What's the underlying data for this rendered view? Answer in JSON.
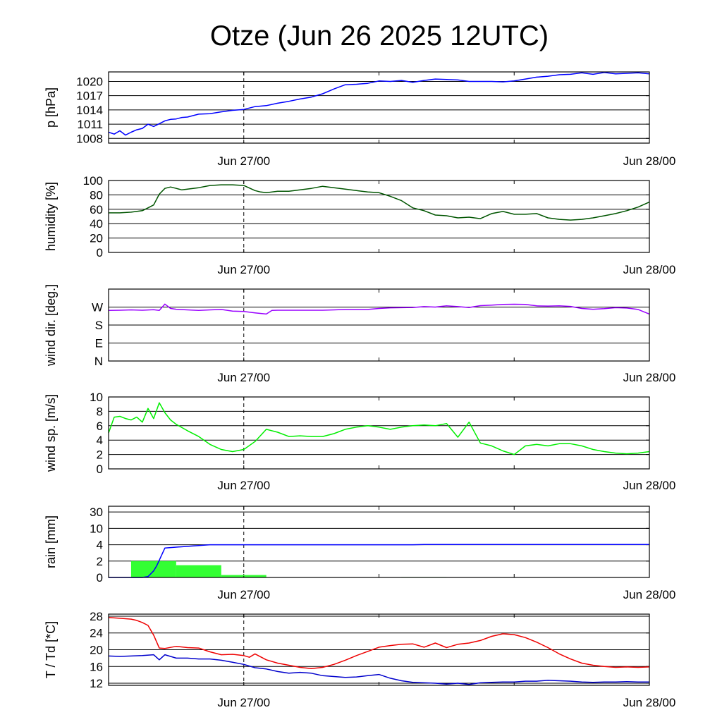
{
  "title": "Otze (Jun 26 2025 12UTC)",
  "chart_data": [
    {
      "type": "line",
      "ylabel": "p [hPa]",
      "yticks": [
        1008,
        1011,
        1014,
        1017,
        1020
      ],
      "ylim": [
        1007,
        1022
      ],
      "xticklabels": [
        "Jun 27/00",
        "Jun 28/00"
      ],
      "series": [
        {
          "color": "#0000ff",
          "x": [
            0,
            0.5,
            1,
            1.5,
            2,
            2.5,
            3,
            3.5,
            4,
            4.5,
            5,
            5.5,
            6,
            6.5,
            7,
            8,
            9,
            10,
            11,
            12,
            13,
            14,
            15,
            16,
            17,
            18,
            19,
            20,
            21,
            22,
            23,
            24,
            25,
            26,
            27,
            28,
            29,
            30,
            31,
            32,
            33,
            34,
            35,
            36,
            37,
            38,
            39,
            40,
            41,
            42,
            43,
            44,
            45,
            46,
            47,
            48
          ],
          "values": [
            1009.3,
            1008.9,
            1009.6,
            1008.7,
            1009.3,
            1009.8,
            1010.1,
            1011.0,
            1010.5,
            1011.1,
            1011.7,
            1012.0,
            1012.1,
            1012.4,
            1012.5,
            1013.1,
            1013.2,
            1013.6,
            1013.9,
            1014.1,
            1014.7,
            1014.9,
            1015.4,
            1015.8,
            1016.3,
            1016.7,
            1017.4,
            1018.4,
            1019.3,
            1019.4,
            1019.6,
            1020.1,
            1020.0,
            1020.2,
            1019.8,
            1020.2,
            1020.5,
            1020.4,
            1020.3,
            1020.0,
            1020.0,
            1020.0,
            1019.9,
            1020.1,
            1020.5,
            1020.9,
            1021.1,
            1021.4,
            1021.5,
            1021.8,
            1021.5,
            1021.9,
            1021.6,
            1021.7,
            1021.8,
            1021.6
          ]
        }
      ]
    },
    {
      "type": "line",
      "ylabel": "humidity [%]",
      "yticks": [
        0,
        20,
        40,
        60,
        80,
        100
      ],
      "ylim": [
        0,
        100
      ],
      "xticklabels": [
        "Jun 27/00",
        "Jun 28/00"
      ],
      "series": [
        {
          "color": "#005500",
          "x": [
            0,
            1,
            2,
            3,
            3.5,
            4,
            4.5,
            5,
            5.5,
            6,
            6.5,
            7,
            8,
            9,
            10,
            11,
            12,
            13,
            13.5,
            14,
            15,
            16,
            17,
            18,
            19,
            20,
            21,
            22,
            23,
            24,
            25,
            26,
            27,
            28,
            29,
            30,
            31,
            32,
            33,
            34,
            35,
            36,
            37,
            38,
            39,
            40,
            41,
            42,
            43,
            44,
            45,
            46,
            47,
            48
          ],
          "values": [
            55,
            55,
            56,
            58,
            62,
            66,
            81,
            89,
            91,
            89,
            87,
            88,
            90,
            93,
            94,
            94,
            93,
            86,
            84,
            83,
            85,
            85,
            87,
            89,
            92,
            90,
            88,
            86,
            84,
            83,
            78,
            72,
            62,
            58,
            52,
            51,
            48,
            49,
            47,
            54,
            57,
            53,
            53,
            54,
            48,
            46,
            45,
            46,
            48,
            51,
            54,
            58,
            63,
            70
          ]
        }
      ]
    },
    {
      "type": "line",
      "ylabel": "wind dir. [deg.]",
      "yticks": [
        0,
        90,
        180,
        270
      ],
      "yticklabels": [
        "N",
        "E",
        "S",
        "W"
      ],
      "ylim": [
        0,
        360
      ],
      "xticklabels": [
        "Jun 27/00",
        "Jun 28/00"
      ],
      "series": [
        {
          "color": "#9900ff",
          "x": [
            0,
            1,
            2,
            3,
            4,
            4.5,
            5,
            5.5,
            6,
            7,
            8,
            9,
            10,
            11,
            12,
            13,
            14,
            14.5,
            15,
            16,
            17,
            18,
            19,
            20,
            21,
            22,
            23,
            24,
            25,
            26,
            27,
            28,
            29,
            30,
            31,
            32,
            33,
            34,
            35,
            36,
            37,
            38,
            39,
            40,
            41,
            42,
            43,
            44,
            45,
            46,
            47,
            48
          ],
          "values": [
            253,
            254,
            256,
            254,
            257,
            253,
            285,
            263,
            259,
            256,
            253,
            256,
            258,
            250,
            248,
            241,
            235,
            253,
            254,
            254,
            254,
            254,
            254,
            256,
            258,
            258,
            258,
            263,
            266,
            267,
            268,
            272,
            270,
            276,
            272,
            268,
            277,
            280,
            283,
            284,
            283,
            276,
            275,
            276,
            273,
            263,
            259,
            262,
            267,
            265,
            258,
            235
          ]
        }
      ]
    },
    {
      "type": "line",
      "ylabel": "wind sp. [m/s]",
      "yticks": [
        0,
        2,
        4,
        6,
        8,
        10
      ],
      "ylim": [
        0,
        10
      ],
      "xticklabels": [
        "Jun 27/00",
        "Jun 28/00"
      ],
      "series": [
        {
          "color": "#00ee00",
          "x": [
            0,
            0.5,
            1,
            1.5,
            2,
            2.5,
            3,
            3.5,
            4,
            4.5,
            5,
            5.5,
            6,
            7,
            8,
            9,
            10,
            11,
            12,
            13,
            14,
            15,
            16,
            17,
            18,
            19,
            20,
            21,
            22,
            23,
            24,
            25,
            26,
            27,
            28,
            29,
            30,
            31,
            32,
            33,
            34,
            35,
            36,
            37,
            38,
            39,
            40,
            41,
            42,
            43,
            44,
            45,
            46,
            47,
            48
          ],
          "values": [
            5.0,
            7.2,
            7.3,
            7.0,
            6.8,
            7.2,
            6.5,
            8.4,
            7.0,
            9.2,
            7.8,
            6.8,
            6.2,
            5.3,
            4.5,
            3.4,
            2.7,
            2.4,
            2.7,
            3.8,
            5.5,
            5.1,
            4.5,
            4.6,
            4.5,
            4.5,
            4.9,
            5.5,
            5.8,
            6.0,
            5.8,
            5.5,
            5.8,
            6.0,
            6.1,
            6.0,
            6.3,
            4.4,
            6.5,
            3.6,
            3.2,
            2.5,
            2.0,
            3.2,
            3.4,
            3.2,
            3.5,
            3.5,
            3.2,
            2.7,
            2.4,
            2.2,
            2.1,
            2.2,
            2.4
          ]
        }
      ]
    },
    {
      "type": "bar",
      "ylabel": "rain [mm]",
      "yticks": [
        0,
        2,
        4,
        10,
        30
      ],
      "xticklabels": [
        "Jun 27/00",
        "Jun 28/00"
      ],
      "bars": [
        {
          "from": 2,
          "to": 6,
          "value": 2.0
        },
        {
          "from": 6,
          "to": 10,
          "value": 1.5
        },
        {
          "from": 10,
          "to": 14,
          "value": 0.3
        },
        {
          "from": 26,
          "to": 30,
          "value": 0.05
        }
      ],
      "bar_color": "#33ff33",
      "series": [
        {
          "color": "#0000ff",
          "x": [
            0,
            2,
            3,
            3.5,
            4,
            4.3,
            4.6,
            5,
            6,
            7,
            8,
            9,
            10,
            14,
            20,
            27,
            28,
            48
          ],
          "values": [
            0,
            0,
            0,
            0.1,
            0.8,
            1.5,
            2.4,
            3.6,
            3.7,
            3.8,
            3.9,
            4.0,
            4.0,
            4.0,
            4.0,
            4.0,
            4.1,
            4.1
          ]
        }
      ]
    },
    {
      "type": "line",
      "ylabel": "T / Td [*C]",
      "yticks": [
        12,
        16,
        20,
        24,
        28
      ],
      "ylim": [
        11.5,
        28.5
      ],
      "xticklabels": [
        "Jun 27/00",
        "Jun 28/00"
      ],
      "series": [
        {
          "color": "#ee0000",
          "x": [
            0,
            1,
            2,
            2.5,
            3,
            3.5,
            4,
            4.5,
            5,
            6,
            7,
            8,
            9,
            10,
            11,
            12,
            12.5,
            13,
            14,
            15,
            16,
            17,
            18,
            19,
            20,
            21,
            22,
            23,
            24,
            25,
            26,
            27,
            28,
            29,
            30,
            31,
            32,
            33,
            34,
            35,
            36,
            37,
            38,
            39,
            40,
            41,
            42,
            43,
            44,
            45,
            46,
            47,
            48
          ],
          "values": [
            27.7,
            27.5,
            27.3,
            27.0,
            26.5,
            25.8,
            23.5,
            20.4,
            20.3,
            20.8,
            20.5,
            20.4,
            19.5,
            18.8,
            18.9,
            18.6,
            18.2,
            19.0,
            17.6,
            16.8,
            16.3,
            15.8,
            15.5,
            15.8,
            16.5,
            17.5,
            18.6,
            19.6,
            20.6,
            21.0,
            21.3,
            21.4,
            20.6,
            21.6,
            20.5,
            21.3,
            21.6,
            22.2,
            23.2,
            23.8,
            23.6,
            22.9,
            21.8,
            20.5,
            19.0,
            17.8,
            16.8,
            16.3,
            16.0,
            15.8,
            15.9,
            15.8,
            15.9
          ]
        },
        {
          "color": "#0000cc",
          "x": [
            0,
            1,
            2,
            3,
            4,
            4.5,
            5,
            6,
            7,
            8,
            9,
            10,
            11,
            12,
            13,
            14,
            15,
            16,
            17,
            18,
            19,
            20,
            21,
            22,
            23,
            24,
            25,
            26,
            27,
            28,
            29,
            30,
            31,
            32,
            33,
            34,
            35,
            36,
            37,
            38,
            39,
            40,
            41,
            42,
            43,
            44,
            45,
            46,
            47,
            48
          ],
          "values": [
            18.5,
            18.4,
            18.5,
            18.6,
            18.8,
            17.6,
            18.8,
            18.0,
            18.0,
            17.8,
            17.8,
            17.5,
            17.0,
            16.5,
            15.7,
            15.4,
            14.8,
            14.4,
            14.6,
            14.4,
            13.8,
            13.6,
            13.4,
            13.5,
            13.8,
            14.1,
            13.2,
            12.6,
            12.2,
            12.1,
            12.0,
            11.8,
            12.0,
            11.7,
            12.1,
            12.2,
            12.3,
            12.3,
            12.5,
            12.5,
            12.7,
            12.6,
            12.5,
            12.3,
            12.2,
            12.3,
            12.3,
            12.4,
            12.3,
            12.3
          ]
        }
      ]
    }
  ]
}
